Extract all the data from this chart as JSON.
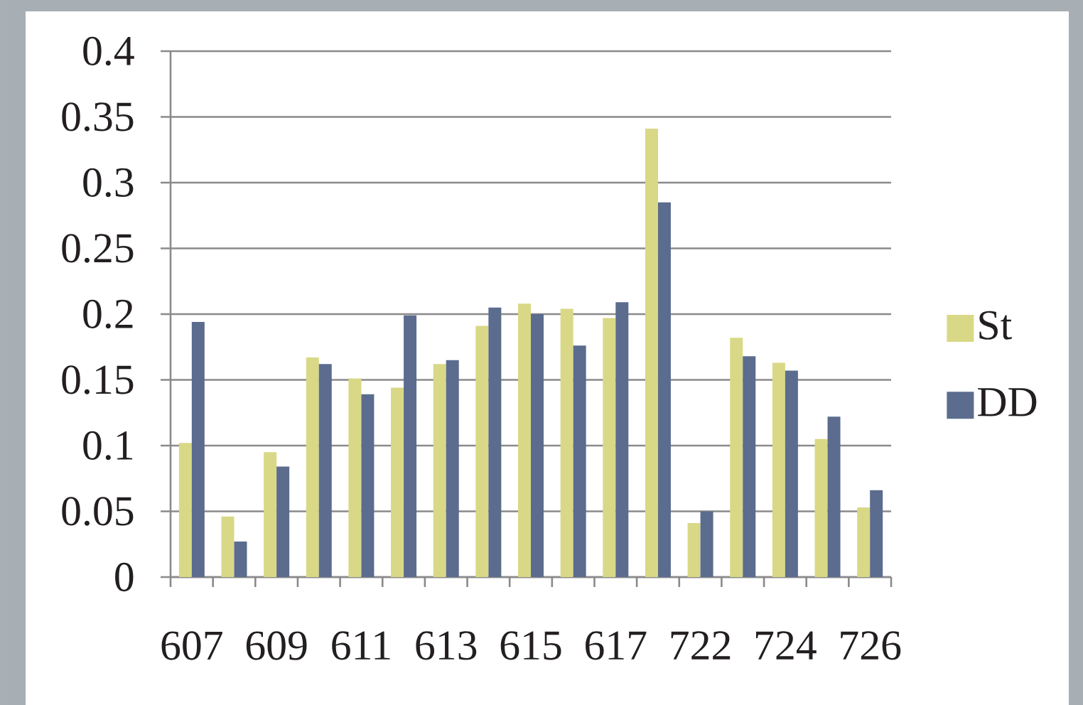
{
  "chart_data": {
    "type": "bar",
    "categories": [
      "607",
      null,
      "609",
      null,
      "611",
      null,
      "613",
      null,
      "615",
      null,
      "617",
      null,
      "722",
      null,
      "724",
      null,
      "726"
    ],
    "series": [
      {
        "name": "St",
        "color": "#d9d886",
        "values": [
          0.102,
          0.046,
          0.095,
          0.167,
          0.151,
          0.144,
          0.162,
          0.191,
          0.208,
          0.204,
          0.197,
          0.341,
          0.041,
          0.182,
          0.163,
          0.105,
          0.053
        ]
      },
      {
        "name": "DD",
        "color": "#5b6c8e",
        "values": [
          0.194,
          0.027,
          0.084,
          0.162,
          0.139,
          0.199,
          0.165,
          0.205,
          0.2,
          0.176,
          0.209,
          0.285,
          0.05,
          0.168,
          0.157,
          0.122,
          0.066
        ]
      }
    ],
    "ylim": [
      0,
      0.4
    ],
    "yticks": [
      0,
      0.05,
      0.1,
      0.15,
      0.2,
      0.25,
      0.3,
      0.35,
      0.4
    ],
    "grid": "y",
    "legend": "right"
  }
}
